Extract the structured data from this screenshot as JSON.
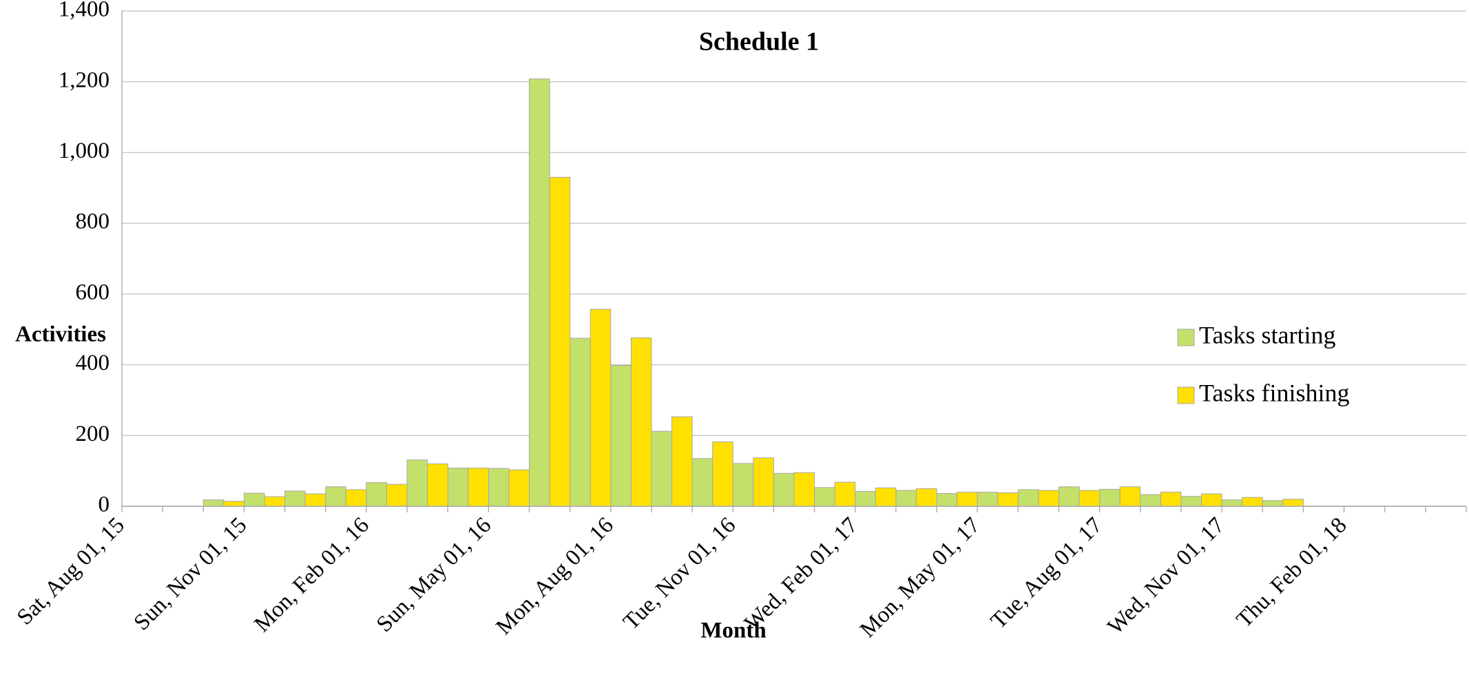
{
  "chart_data": {
    "type": "bar",
    "title": "Schedule 1",
    "x_label": "Month",
    "y_label": "Activities",
    "categories": [
      "Sat, Aug 01, 15",
      null,
      null,
      "Sun, Nov 01, 15",
      null,
      null,
      "Mon, Feb 01, 16",
      null,
      null,
      "Sun, May 01, 16",
      null,
      null,
      "Mon, Aug 01, 16",
      null,
      null,
      "Tue, Nov 01, 16",
      null,
      null,
      "Wed, Feb 01, 17",
      null,
      null,
      "Mon, May 01, 17",
      null,
      null,
      "Tue, Aug 01, 17",
      null,
      null,
      "Wed, Nov 01, 17",
      null,
      null,
      "Thu, Feb 01, 18",
      null,
      null
    ],
    "series": [
      {
        "name": "Tasks starting",
        "color": "#c3e06a",
        "values": [
          0,
          0,
          18,
          37,
          43,
          55,
          67,
          131,
          108,
          107,
          1208,
          475,
          398,
          212,
          135,
          121,
          93,
          53,
          42,
          45,
          36,
          40,
          47,
          55,
          48,
          33,
          28,
          18,
          16,
          0,
          0,
          0,
          0
        ]
      },
      {
        "name": "Tasks finishing",
        "color": "#ffe000",
        "values": [
          0,
          0,
          14,
          27,
          35,
          47,
          62,
          120,
          108,
          103,
          930,
          557,
          476,
          253,
          182,
          137,
          95,
          68,
          52,
          50,
          40,
          38,
          45,
          45,
          55,
          40,
          35,
          25,
          20,
          0,
          0,
          0,
          0
        ]
      }
    ],
    "ylim": [
      0,
      1400
    ],
    "yticks": [
      0,
      200,
      400,
      600,
      800,
      {
        "value": 1000,
        "label": "1,000"
      },
      {
        "value": 1200,
        "label": "1,200"
      },
      {
        "value": 1400,
        "label": "1,400"
      }
    ],
    "grid": true,
    "legend": "right"
  }
}
